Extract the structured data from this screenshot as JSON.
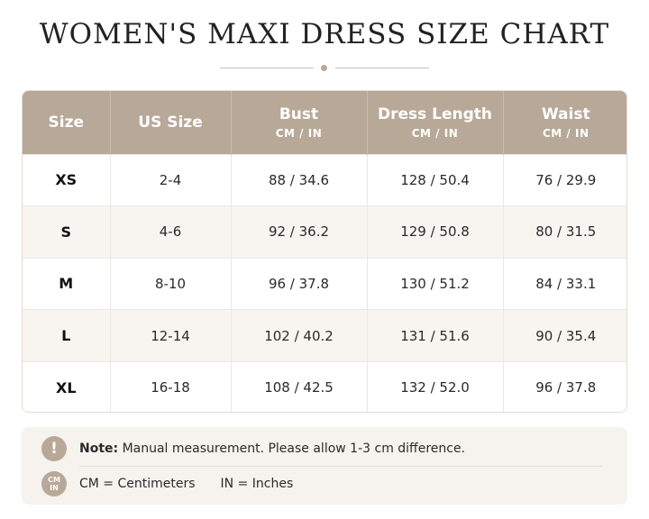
{
  "title": "WOMEN'S MAXI DRESS SIZE CHART",
  "table": {
    "headers": [
      {
        "label": "Size",
        "sub": ""
      },
      {
        "label": "US Size",
        "sub": ""
      },
      {
        "label": "Bust",
        "sub": "CM / IN"
      },
      {
        "label": "Dress Length",
        "sub": "CM / IN"
      },
      {
        "label": "Waist",
        "sub": "CM / IN"
      }
    ],
    "rows": [
      [
        "XS",
        "2-4",
        "88 / 34.6",
        "128 / 50.4",
        "76 / 29.9"
      ],
      [
        "S",
        "4-6",
        "92 / 36.2",
        "129 / 50.8",
        "80 / 31.5"
      ],
      [
        "M",
        "8-10",
        "96 / 37.8",
        "130 / 51.2",
        "84 / 33.1"
      ],
      [
        "L",
        "12-14",
        "102 / 40.2",
        "131 / 51.6",
        "90 / 35.4"
      ],
      [
        "XL",
        "16-18",
        "108 / 42.5",
        "132 / 52.0",
        "96 / 37.8"
      ]
    ]
  },
  "notes": {
    "warning_icon": "!",
    "note_label": "Note:",
    "note_text": "Manual measurement. Please allow 1-3 cm difference.",
    "units_icon_top": "CM",
    "units_icon_bottom": "IN",
    "cm_def": "CM = Centimeters",
    "in_def": "IN = Inches"
  },
  "colors": {
    "header_bg": "#b8a898",
    "accent": "#b9a899",
    "notes_bg": "#f6f2ee"
  }
}
